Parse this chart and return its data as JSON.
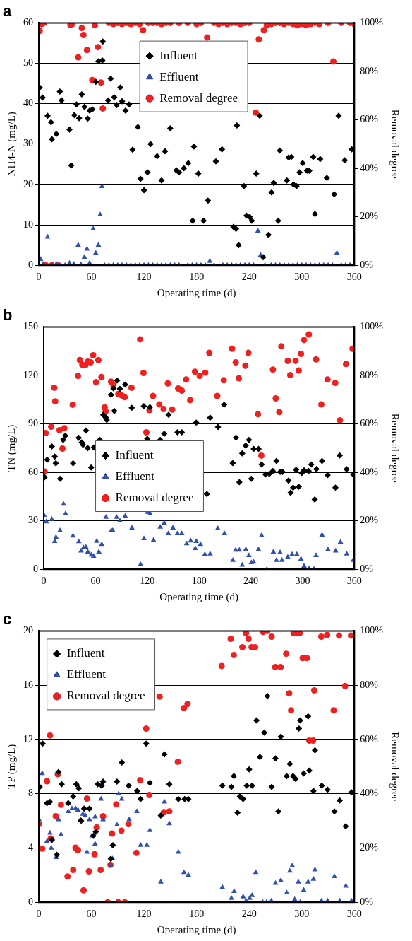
{
  "chart_data": [
    {
      "type": "scatter",
      "title": "a",
      "xlabel": "Operating time (d)",
      "ylabel": "NH4-N (mg/L)",
      "y2label": "Removal degree",
      "xlim": [
        0,
        360
      ],
      "xticks": [
        0,
        60,
        120,
        180,
        240,
        300,
        360
      ],
      "ylim": [
        0,
        60
      ],
      "yticks": [
        0,
        10,
        20,
        30,
        40,
        50,
        60
      ],
      "y2lim": [
        0,
        100
      ],
      "y2ticks": [
        {
          "value": 0,
          "label": "0%"
        },
        {
          "value": 20,
          "label": "20%"
        },
        {
          "value": 40,
          "label": "40%"
        },
        {
          "value": 60,
          "label": "60%"
        },
        {
          "value": 80,
          "label": "80%"
        },
        {
          "value": 100,
          "label": "100%"
        }
      ],
      "grid": "y",
      "legend": "top",
      "series": [
        {
          "name": "Influent",
          "color": "#000000",
          "marker": "diamond",
          "x": [
            1,
            4.4,
            10,
            14,
            15,
            20,
            24,
            26,
            35,
            37,
            40.5,
            43,
            46,
            49,
            52,
            55.8,
            58,
            61,
            65,
            68,
            72.5,
            73,
            79,
            82,
            86,
            89,
            93,
            95,
            99,
            103,
            107,
            113,
            116,
            120,
            124,
            127.5,
            135,
            140,
            144,
            150,
            157,
            160,
            165.5,
            170.5,
            175.5,
            177,
            182,
            188,
            193,
            202,
            209,
            222,
            225,
            226,
            228,
            234,
            237,
            240.5,
            243,
            248,
            252,
            256,
            262,
            265.5,
            268,
            273,
            275,
            283,
            285,
            288,
            290.5,
            294,
            297.5,
            301,
            306,
            308.6,
            313,
            315,
            321,
            328.6,
            337,
            342,
            349,
            357
          ],
          "values": [
            44,
            41.5,
            37,
            35.4,
            31.2,
            32.5,
            43,
            40.8,
            33.6,
            24.7,
            37.2,
            39.8,
            36.4,
            42.3,
            39.2,
            36.3,
            38.3,
            38.6,
            45.4,
            50.5,
            50.7,
            55.4,
            40.8,
            46.2,
            41.6,
            39.7,
            44,
            40.6,
            38.3,
            39.8,
            28.6,
            34.2,
            21.4,
            18.6,
            23,
            30,
            27,
            21,
            28.2,
            33.9,
            23.5,
            23,
            24,
            25.3,
            11,
            29.4,
            22.7,
            11,
            16,
            25.7,
            28.7,
            9.5,
            9,
            34.6,
            5,
            19.6,
            12.3,
            12,
            11,
            22.7,
            37,
            2,
            7.5,
            18,
            20.4,
            11,
            28.4,
            21,
            26.7,
            26.8,
            20,
            19.6,
            23,
            25.3,
            23.4,
            23.4,
            26.8,
            12.7,
            26.3,
            21.6,
            17.6,
            37,
            26,
            28.7
          ]
        },
        {
          "name": "Effluent",
          "color": "#3050b0",
          "marker": "triangle",
          "x": [
            2,
            5,
            10,
            15,
            20,
            25,
            30,
            35,
            40,
            45,
            48,
            52,
            55,
            58,
            62,
            65,
            68,
            70,
            72,
            75,
            80,
            85,
            90,
            95,
            100,
            105,
            110,
            115,
            120,
            125,
            130,
            135,
            140,
            145,
            150,
            155,
            160,
            170,
            175,
            180,
            185,
            190,
            195,
            200,
            210,
            215,
            220,
            225,
            230,
            235,
            240,
            245,
            250,
            253,
            258,
            265,
            270,
            275,
            280,
            285,
            290,
            295,
            300,
            305,
            310,
            315,
            320,
            325,
            330,
            335,
            340,
            345,
            350,
            355,
            360
          ],
          "values": [
            1.5,
            0.3,
            7,
            0,
            0.3,
            0,
            0,
            0.5,
            0.3,
            5,
            0.2,
            2,
            4,
            0.5,
            9,
            3,
            5,
            12.5,
            19.5,
            0,
            0,
            0,
            0,
            0,
            0,
            0,
            0,
            0,
            0,
            0,
            0,
            0,
            0,
            0,
            0,
            0,
            0,
            0,
            0,
            0,
            0,
            0,
            1,
            0,
            0,
            0,
            0,
            0,
            0,
            0,
            0,
            0,
            8.5,
            2.5,
            0,
            0,
            0,
            0,
            0,
            0,
            0,
            0,
            0,
            0,
            0,
            0,
            0,
            0,
            0,
            0,
            3,
            0,
            0,
            0,
            0
          ]
        },
        {
          "name": "Removal degree",
          "color": "#ee2020",
          "marker": "circle",
          "axis": "y2",
          "x": [
            1,
            3,
            6,
            8,
            15,
            22,
            36,
            38,
            45,
            49,
            51,
            55,
            61,
            64,
            67.5,
            71,
            73,
            80,
            85,
            90,
            95,
            100,
            105,
            110,
            115,
            119,
            125,
            130,
            135,
            140,
            145,
            150,
            160,
            170,
            180,
            185,
            192,
            200,
            205,
            210,
            215,
            220,
            225,
            230,
            235,
            240,
            247.5,
            251,
            256.7,
            260,
            265,
            270,
            275,
            280,
            285,
            290,
            295,
            300,
            305,
            310,
            315,
            320,
            330,
            336,
            345,
            355,
            360
          ],
          "values": [
            96.7,
            99.5,
            100,
            0,
            0,
            0,
            99.2,
            99.5,
            85.8,
            97.9,
            95,
            88.8,
            76.4,
            99,
            90,
            75.4,
            64.7,
            100,
            99.5,
            100,
            99.5,
            100,
            99.5,
            100,
            99.5,
            97,
            100,
            100,
            100,
            99.5,
            100,
            100,
            100,
            100,
            99.5,
            100,
            94,
            100,
            99.5,
            100,
            99.5,
            100,
            100,
            99.5,
            100,
            100,
            63,
            93.2,
            97,
            99,
            99.5,
            100,
            100,
            99.5,
            100,
            99.5,
            99,
            99.5,
            99,
            99.5,
            100,
            99.5,
            100,
            84.1,
            100,
            100,
            99.5
          ]
        }
      ]
    },
    {
      "type": "scatter",
      "title": "b",
      "xlabel": "Operating time (d)",
      "ylabel": "TN (mg/L)",
      "y2label": "Removal degree",
      "xlim": [
        0,
        360
      ],
      "xticks": [
        0,
        60,
        120,
        180,
        240,
        300,
        360
      ],
      "ylim": [
        0,
        150
      ],
      "yticks": [
        0,
        30,
        60,
        90,
        120,
        150
      ],
      "y2lim": [
        0,
        100
      ],
      "y2ticks": [
        {
          "value": 0,
          "label": "0%"
        },
        {
          "value": 20,
          "label": "20%"
        },
        {
          "value": 40,
          "label": "40%"
        },
        {
          "value": 60,
          "label": "60%"
        },
        {
          "value": 80,
          "label": "80%"
        },
        {
          "value": 100,
          "label": "100%"
        }
      ],
      "grid": "y",
      "legend": "left",
      "series": [
        {
          "name": "Influent",
          "color": "#000000",
          "marker": "diamond",
          "x": [
            1,
            4,
            9.4,
            12.8,
            14,
            19,
            22.5,
            25,
            34,
            40.5,
            44,
            45.6,
            49,
            51,
            55,
            58,
            65,
            69,
            72,
            73,
            78,
            80.8,
            81.8,
            85,
            88.3,
            94.4,
            102,
            116,
            120,
            123,
            135,
            139.7,
            144.7,
            155,
            160,
            176.7,
            189,
            192.8,
            202,
            209,
            219,
            222.8,
            226.7,
            230,
            234,
            237.8,
            240.5,
            243.3,
            249,
            252.5,
            257,
            261.4,
            265.5,
            269.7,
            274,
            276.7,
            283.6,
            286,
            289,
            292.5,
            295.5,
            299,
            301.7,
            307,
            310,
            314,
            316,
            322.5,
            329,
            338,
            343,
            351,
            358.6
          ],
          "values": [
            57,
            67.8,
            76,
            69.8,
            65.6,
            56,
            80,
            82.7,
            65.6,
            81.4,
            78.5,
            77,
            85.8,
            75,
            63,
            75.4,
            80,
            95.6,
            93.8,
            92.4,
            108,
            112,
            98,
            116.8,
            111.7,
            114.3,
            100,
            100.9,
            80.7,
            100.3,
            80,
            83.9,
            95.6,
            84.8,
            84.8,
            90.8,
            46.6,
            93.8,
            88,
            101.8,
            65.7,
            81.5,
            53.9,
            71.7,
            76.5,
            80,
            56,
            74.5,
            74.5,
            64.9,
            58.7,
            59,
            60.8,
            67,
            60.2,
            60.2,
            54.9,
            47.3,
            50.5,
            61.6,
            51.1,
            59.6,
            61.2,
            60.8,
            64.9,
            43.2,
            62,
            67,
            58.3,
            50.5,
            70.4,
            61.9,
            58.7
          ]
        },
        {
          "name": "Effluent",
          "color": "#3050b0",
          "marker": "triangle",
          "x": [
            0.3,
            3,
            9.4,
            12.8,
            14.2,
            18.9,
            23,
            25.3,
            33.9,
            40.6,
            43.3,
            46.1,
            48.9,
            51.1,
            55,
            57.8,
            61.4,
            63.9,
            67.2,
            72.2,
            78.3,
            80,
            84.4,
            88.3,
            94.4,
            102.2,
            112.2,
            116.1,
            120.3,
            123.3,
            127.2,
            135,
            139.7,
            144.4,
            149.7,
            155,
            160,
            165.6,
            170.3,
            175.6,
            176.7,
            181.7,
            186.7,
            192.8,
            201.7,
            209.4,
            219.2,
            222.5,
            226.7,
            230,
            234.2,
            237.8,
            240.6,
            243.3,
            248.9,
            252.5,
            258.6,
            266.1,
            269.7,
            273.9,
            276.1,
            282.8,
            287.8,
            293.3,
            298.1,
            301.7,
            307.2,
            313.3,
            315.6,
            322.5,
            329.4,
            338.3,
            343.9,
            351.1,
            358.6
          ],
          "values": [
            33.4,
            29.4,
            30.9,
            17.3,
            19.8,
            23.9,
            40.3,
            34.4,
            20.6,
            17.1,
            11.4,
            13.3,
            13.6,
            10.7,
            8.8,
            8.1,
            17.4,
            10.7,
            15.4,
            32.2,
            23.9,
            23.9,
            32.2,
            30,
            32.9,
            25.6,
            2.9,
            19,
            35.3,
            34.4,
            18,
            26.1,
            28.6,
            22.1,
            25.6,
            22.1,
            22.1,
            15.8,
            17.6,
            12.9,
            17.3,
            15.4,
            9.2,
            9.5,
            25.3,
            22.1,
            5.6,
            11.9,
            11.9,
            2.6,
            12.2,
            8.5,
            4.1,
            4.5,
            12.2,
            20.9,
            0,
            10.7,
            5.6,
            10.4,
            5.6,
            7.5,
            9.2,
            9.2,
            6.3,
            1.9,
            0.4,
            0.1,
            8.5,
            21.2,
            12.2,
            11.4,
            16.8,
            9.5,
            5.6
          ]
        },
        {
          "name": "Removal degree",
          "color": "#ee2020",
          "marker": "circle",
          "axis": "y2",
          "x": [
            1,
            2.2,
            8.6,
            12.2,
            13.3,
            18.3,
            21.7,
            23.9,
            33.6,
            39.7,
            41.9,
            44.7,
            48.3,
            51.1,
            54.4,
            57.2,
            60.6,
            63.3,
            66.9,
            70.6,
            71.7,
            78,
            80.8,
            86.4,
            90.6,
            93.9,
            101.7,
            111.7,
            115.6,
            118.9,
            122.5,
            126.7,
            133.9,
            138.9,
            143.9,
            148.9,
            155.8,
            160,
            165,
            169.7,
            175.3,
            180.8,
            187.2,
            191.9,
            201.1,
            208.6,
            218.3,
            222.5,
            226.1,
            233.6,
            237.2,
            248.3,
            252.2,
            265.6,
            268.9,
            273,
            275.3,
            282.8,
            285.6,
            291.9,
            295.6,
            298.1,
            301.7,
            307.2,
            315.6,
            321.7,
            328.9,
            337.8,
            343.3,
            350.3,
            357.8
          ],
          "values": [
            40.3,
            56.2,
            58.8,
            74.9,
            69.3,
            57.4,
            49.8,
            58.2,
            67.9,
            79.8,
            86.3,
            84.4,
            84.2,
            85.7,
            85.4,
            88.3,
            77.2,
            86.3,
            79.3,
            66.8,
            65.2,
            77.4,
            75.9,
            72.3,
            71.7,
            71,
            74.9,
            94.9,
            81,
            56.5,
            65.7,
            71.5,
            68,
            66.1,
            76.7,
            65.9,
            74.6,
            73.7,
            78.3,
            69.8,
            81.5,
            79.8,
            81.1,
            89.3,
            71.5,
            78,
            91,
            85.4,
            78.8,
            84,
            89.3,
            64,
            46.9,
            82.4,
            70.5,
            64.9,
            92,
            86,
            80.1,
            86,
            82,
            88.9,
            94.6,
            96.9,
            86.6,
            68,
            78.3,
            76.9,
            61.5,
            84.7,
            91
          ]
        }
      ]
    },
    {
      "type": "scatter",
      "title": "c",
      "xlabel": "Operating time (d)",
      "ylabel": "TP (mg/L)",
      "y2label": "Removal degree",
      "xlim": [
        0,
        360
      ],
      "xticks": [
        0,
        60,
        120,
        180,
        240,
        300,
        360
      ],
      "ylim": [
        0,
        20
      ],
      "yticks": [
        0,
        4,
        8,
        12,
        16,
        20
      ],
      "y2lim": [
        0,
        100
      ],
      "y2ticks": [
        {
          "value": 0,
          "label": "0%"
        },
        {
          "value": 20,
          "label": "20%"
        },
        {
          "value": 40,
          "label": "40%"
        },
        {
          "value": 60,
          "label": "60%"
        },
        {
          "value": 80,
          "label": "80%"
        },
        {
          "value": 100,
          "label": "100%"
        }
      ],
      "grid": "y",
      "legend": "top left",
      "series": [
        {
          "name": "Influent",
          "color": "#000000",
          "marker": "diamond",
          "x": [
            1.1,
            4.4,
            9.4,
            12.8,
            15,
            20.6,
            22.5,
            26.1,
            33.6,
            39.2,
            42.8,
            45.6,
            48.3,
            51.7,
            57.8,
            62.2,
            65,
            67.2,
            71.7,
            73.3,
            82.2,
            84.4,
            89.2,
            94.7,
            102.5,
            112.2,
            116.1,
            122.5,
            126.7,
            139.2,
            143.3,
            148.9,
            159.2,
            166.4,
            170.6,
            209.4,
            219.7,
            222.5,
            226.7,
            229.4,
            233.1,
            237.2,
            240,
            243.3,
            248.3,
            252.2,
            257.2,
            260.8,
            265.6,
            270,
            273.3,
            276.1,
            282.8,
            286.4,
            290,
            292.8,
            296.7,
            298.1,
            302.2,
            307.2,
            308.6,
            313.3,
            315,
            322.8,
            329.4,
            337.2,
            343.3,
            350,
            356.7
          ],
          "values": [
            8.5,
            11.7,
            7.3,
            7.4,
            4.6,
            3.5,
            9.6,
            8.7,
            7.3,
            7.8,
            8.7,
            8.4,
            6,
            6.9,
            6.9,
            4.9,
            5.2,
            8.7,
            8.6,
            8.9,
            3.2,
            4.2,
            8.9,
            10.3,
            8.6,
            8.2,
            7.6,
            11.7,
            8.8,
            6.4,
            10.9,
            8.7,
            7.6,
            7.6,
            7.6,
            8.6,
            8.5,
            9.3,
            6.6,
            7.8,
            7.6,
            8.6,
            9.8,
            8.6,
            13.4,
            10.7,
            12.5,
            15.2,
            8.5,
            10.6,
            6.7,
            12.2,
            9.3,
            10.2,
            9.3,
            9.1,
            12.8,
            13.4,
            9.5,
            13.7,
            9.7,
            8.2,
            11.2,
            8.6,
            8.3,
            6.7,
            7.5,
            5.6,
            8.1
          ]
        },
        {
          "name": "Effluent",
          "color": "#3050b0",
          "marker": "triangle",
          "x": [
            0.3,
            3.9,
            9.4,
            12.8,
            14.2,
            19.7,
            22.5,
            25.3,
            33.6,
            37.8,
            41.9,
            44.7,
            47.5,
            50.3,
            53.1,
            55,
            57.8,
            60.6,
            64.2,
            64.2,
            71.1,
            73.3,
            82.2,
            84.2,
            89.2,
            91.1,
            94.7,
            103.1,
            111.9,
            116.1,
            123.3,
            126.7,
            139.2,
            143.3,
            148.9,
            159.2,
            165.6,
            170.6,
            209.4,
            219.7,
            222.8,
            233.1,
            236.4,
            240.6,
            243.3,
            247.5,
            255.6,
            259.7,
            265.3,
            270,
            276.1,
            282.8,
            286.4,
            289.2,
            291.9,
            296.1,
            298.1,
            302.2,
            307.2,
            313.3,
            315,
            322.5,
            329.4,
            337.2,
            343.3,
            350.3,
            356.7
          ],
          "values": [
            6.1,
            9.5,
            4.5,
            5.1,
            4,
            3.3,
            6.1,
            5,
            6.7,
            6.9,
            6.9,
            6.8,
            6.1,
            6.5,
            6.4,
            3.7,
            6.1,
            4.9,
            4.3,
            6.3,
            7.6,
            6.1,
            2.7,
            3.2,
            5.7,
            8,
            7.6,
            6.1,
            6.7,
            4.2,
            4.2,
            5.3,
            1.5,
            7.4,
            5.8,
            3.7,
            2.2,
            2,
            1.1,
            0.3,
            0.8,
            0.4,
            0.1,
            0.3,
            0.5,
            2.2,
            0,
            0,
            0.1,
            1.4,
            1.6,
            0.7,
            2.3,
            2.7,
            0.2,
            1.5,
            0,
            0.9,
            1.5,
            1.7,
            2.4,
            0.1,
            0.1,
            1.9,
            0.1,
            1.2,
            0.1
          ]
        },
        {
          "name": "Removal degree",
          "color": "#ee2020",
          "marker": "circle",
          "axis": "y2",
          "x": [
            0.3,
            3.9,
            9.4,
            12.8,
            13.6,
            19.4,
            21.7,
            25.3,
            32.8,
            39.2,
            41.9,
            44.7,
            51.1,
            55,
            57.2,
            63.6,
            66.1,
            70.6,
            73.3,
            78.6,
            81.7,
            83.6,
            88.3,
            90.6,
            94.2,
            98.3,
            102.2,
            111.4,
            115.6,
            122.5,
            126.1,
            137.8,
            142.8,
            148.9,
            158.6,
            165.6,
            169.7,
            208.6,
            218.9,
            222.5,
            232.2,
            236.4,
            239.2,
            242.8,
            246.7,
            255.8,
            260.6,
            265.6,
            269.7,
            275.8,
            282.2,
            285.6,
            287.8,
            290.6,
            293.9,
            297.5,
            301.1,
            305.8,
            308.6,
            312.8,
            314.2,
            322.2,
            328.9,
            336.4,
            342.5,
            349.4,
            356.1
          ],
          "values": [
            28.8,
            19.8,
            44.6,
            61.5,
            23.5,
            31.7,
            47.2,
            35.9,
            9.5,
            11.9,
            20.1,
            19.2,
            4.4,
            38.2,
            11.4,
            17.7,
            27.6,
            11.9,
            31.7,
            0,
            13.8,
            25.3,
            36.1,
            0,
            26.4,
            0,
            28.8,
            18.2,
            45,
            64,
            39.5,
            75.8,
            33.2,
            33.5,
            51.8,
            71.6,
            73.1,
            87.1,
            97.1,
            91.1,
            94,
            99.2,
            97.1,
            94,
            94,
            99.6,
            100,
            97.9,
            86.7,
            86.7,
            91.6,
            77,
            70.7,
            99.2,
            99.2,
            99.2,
            90,
            90,
            59.6,
            59.6,
            78.1,
            97.9,
            98.5,
            70.7,
            98.3,
            79.7,
            98.3
          ]
        }
      ]
    }
  ]
}
